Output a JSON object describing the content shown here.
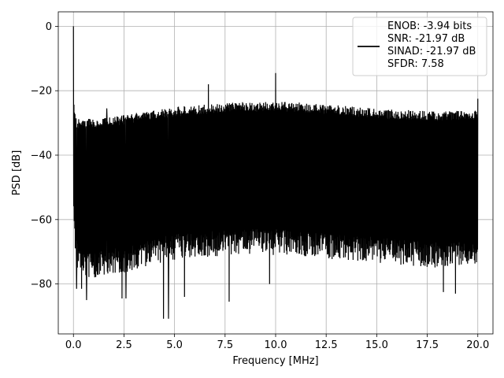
{
  "chart_data": {
    "type": "line",
    "title": "",
    "xlabel": "Frequency [MHz]",
    "ylabel": "PSD [dB]",
    "xlim": [
      -0.75,
      20.75
    ],
    "ylim": [
      -95.5,
      4.5
    ],
    "xticks": [
      0.0,
      2.5,
      5.0,
      7.5,
      10.0,
      12.5,
      15.0,
      17.5,
      20.0
    ],
    "xtick_labels": [
      "0.0",
      "2.5",
      "5.0",
      "7.5",
      "10.0",
      "12.5",
      "15.0",
      "17.5",
      "20.0"
    ],
    "yticks": [
      0,
      -20,
      -40,
      -60,
      -80
    ],
    "ytick_labels": [
      "0",
      "−20",
      "−40",
      "−60",
      "−80"
    ],
    "grid": true,
    "legend_position": "top-right",
    "series_color": "#000000",
    "legend": {
      "entries": [
        "ENOB: -3.94 bits",
        "SNR: -21.97 dB",
        "SINAD: -21.97 dB",
        "SFDR: 7.58"
      ]
    },
    "envelope": {
      "x": [
        0.0,
        0.1,
        0.5,
        1.0,
        2.0,
        3.0,
        4.0,
        5.0,
        6.0,
        7.0,
        8.0,
        9.0,
        10.0,
        11.0,
        12.0,
        13.0,
        14.0,
        15.0,
        16.0,
        17.0,
        18.0,
        19.0,
        20.0
      ],
      "upper": [
        -24,
        -30,
        -30.5,
        -30,
        -29.5,
        -28.5,
        -27.5,
        -26.5,
        -26,
        -25.5,
        -25,
        -25,
        -25,
        -25,
        -25.5,
        -26,
        -26.5,
        -27,
        -27.5,
        -27.5,
        -28,
        -27.5,
        -27.5
      ],
      "lower": [
        -55,
        -70,
        -74,
        -74,
        -73,
        -72,
        -70,
        -68.5,
        -68,
        -67.5,
        -67,
        -67,
        -67,
        -67,
        -68,
        -68.5,
        -69,
        -69.5,
        -70,
        -70.5,
        -71,
        -70.5,
        -70
      ]
    },
    "peaks": [
      {
        "x": 0.0,
        "y": 0.0
      },
      {
        "x": 6.67,
        "y": -18.0
      },
      {
        "x": 10.0,
        "y": -14.5
      },
      {
        "x": 1.65,
        "y": -25.5
      },
      {
        "x": 20.0,
        "y": -22.5
      }
    ],
    "dips": [
      {
        "x": 0.15,
        "y": -81.5
      },
      {
        "x": 0.4,
        "y": -81.5
      },
      {
        "x": 0.65,
        "y": -85.0
      },
      {
        "x": 2.4,
        "y": -84.5
      },
      {
        "x": 2.6,
        "y": -84.5
      },
      {
        "x": 4.45,
        "y": -90.8
      },
      {
        "x": 4.7,
        "y": -90.8
      },
      {
        "x": 5.5,
        "y": -84.0
      },
      {
        "x": 7.7,
        "y": -85.5
      },
      {
        "x": 9.7,
        "y": -80.0
      },
      {
        "x": 18.3,
        "y": -82.5
      },
      {
        "x": 18.9,
        "y": -83.0
      }
    ]
  }
}
